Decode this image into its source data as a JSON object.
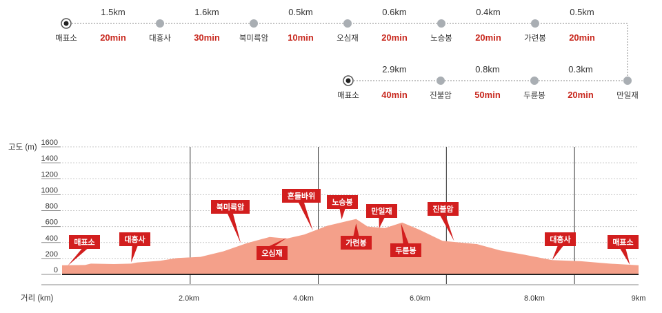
{
  "route": {
    "row1": {
      "stops": [
        "매표소",
        "대흥사",
        "북미륵암",
        "오심재",
        "노승봉",
        "가련봉"
      ],
      "segments": [
        {
          "distance": "1.5km",
          "time": "20min"
        },
        {
          "distance": "1.6km",
          "time": "30min"
        },
        {
          "distance": "0.5km",
          "time": "10min"
        },
        {
          "distance": "0.6km",
          "time": "20min"
        },
        {
          "distance": "0.4km",
          "time": "20min"
        },
        {
          "distance": "0.5km",
          "time": "20min"
        }
      ],
      "end_stop": "만일재"
    },
    "row2": {
      "stops": [
        "매표소",
        "진불암",
        "두륜봉"
      ],
      "segments": [
        {
          "distance": "2.9km",
          "time": "40min"
        },
        {
          "distance": "0.8km",
          "time": "50min"
        },
        {
          "distance": "0.3km",
          "time": "20min"
        }
      ]
    }
  },
  "chart_data": {
    "type": "area",
    "ylabel": "고도 (m)",
    "xlabel": "거리 (km)",
    "yticks": [
      "0",
      "200",
      "400",
      "600",
      "800",
      "1000",
      "1200",
      "1400",
      "1600"
    ],
    "xticks": [
      "2.0km",
      "4.0km",
      "6.0km",
      "8.0km",
      "9km"
    ],
    "ylim": [
      0,
      1600
    ],
    "xlim": [
      0,
      10
    ],
    "grid": true,
    "fill_color": "#f4a08a",
    "label_color": "#d21e1e",
    "profile": [
      [
        0,
        115
      ],
      [
        0.4,
        118
      ],
      [
        0.5,
        135
      ],
      [
        0.9,
        130
      ],
      [
        1.2,
        135
      ],
      [
        1.3,
        150
      ],
      [
        1.7,
        170
      ],
      [
        2.0,
        205
      ],
      [
        2.4,
        220
      ],
      [
        2.8,
        290
      ],
      [
        3.2,
        390
      ],
      [
        3.6,
        470
      ],
      [
        3.9,
        450
      ],
      [
        4.2,
        500
      ],
      [
        4.6,
        610
      ],
      [
        5.1,
        695
      ],
      [
        5.3,
        600
      ],
      [
        5.6,
        580
      ],
      [
        5.9,
        650
      ],
      [
        6.2,
        560
      ],
      [
        6.6,
        420
      ],
      [
        7.2,
        380
      ],
      [
        7.6,
        300
      ],
      [
        8.0,
        250
      ],
      [
        8.5,
        180
      ],
      [
        9.0,
        165
      ],
      [
        9.5,
        135
      ],
      [
        10.0,
        115
      ]
    ],
    "peaks": [
      {
        "name": "매표소",
        "x": 0.1,
        "y": 110
      },
      {
        "name": "대흥사",
        "x": 1.2,
        "y": 150
      },
      {
        "name": "북미륵암",
        "x": 3.1,
        "y": 390
      },
      {
        "name": "오심재",
        "x": 3.9,
        "y": 460
      },
      {
        "name": "흔들바위",
        "x": 4.35,
        "y": 550
      },
      {
        "name": "노승봉",
        "x": 4.85,
        "y": 690
      },
      {
        "name": "가련봉",
        "x": 5.1,
        "y": 640
      },
      {
        "name": "만일재",
        "x": 5.5,
        "y": 580
      },
      {
        "name": "두륜봉",
        "x": 5.88,
        "y": 640
      },
      {
        "name": "진불암",
        "x": 6.8,
        "y": 420
      },
      {
        "name": "대흥사",
        "x": 8.5,
        "y": 180
      },
      {
        "name": "매표소",
        "x": 9.85,
        "y": 120
      }
    ]
  }
}
